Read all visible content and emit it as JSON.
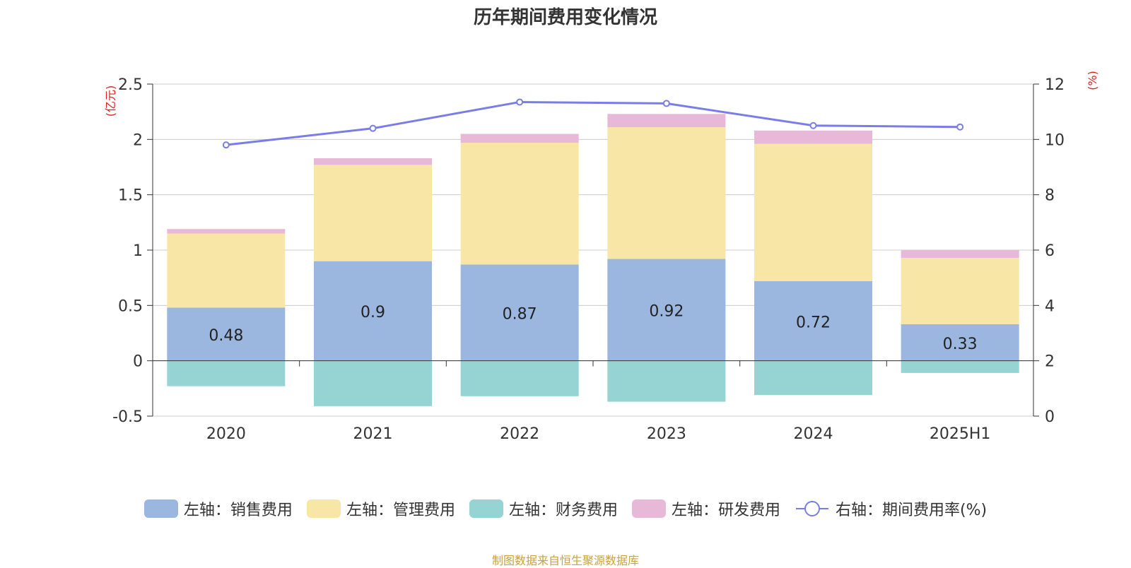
{
  "chart_data": {
    "type": "bar",
    "title": "历年期间费用变化情况",
    "categories": [
      "2020",
      "2021",
      "2022",
      "2023",
      "2024",
      "2025H1"
    ],
    "left_axis": {
      "unit_label": "(亿元)",
      "ylim": [
        -0.5,
        2.5
      ],
      "ticks": [
        "2.5",
        "2",
        "1.5",
        "1",
        "0.5",
        "0",
        "-0.5"
      ]
    },
    "right_axis": {
      "unit_label": "(%)",
      "ylim": [
        0,
        12
      ],
      "ticks": [
        "12",
        "10",
        "8",
        "6",
        "4",
        "2",
        "0"
      ]
    },
    "series": [
      {
        "name": "左轴：销售费用",
        "kind": "bar",
        "axis": "left",
        "color": "#9bb7e0",
        "values": [
          0.48,
          0.9,
          0.87,
          0.92,
          0.72,
          0.33
        ],
        "labels": [
          "0.48",
          "0.9",
          "0.87",
          "0.92",
          "0.72",
          "0.33"
        ]
      },
      {
        "name": "左轴：管理费用",
        "kind": "bar",
        "axis": "left",
        "color": "#f8e6a6",
        "values": [
          0.67,
          0.87,
          1.1,
          1.19,
          1.24,
          0.6
        ]
      },
      {
        "name": "左轴：财务费用",
        "kind": "bar",
        "axis": "left",
        "color": "#96d4d4",
        "values": [
          -0.23,
          -0.41,
          -0.32,
          -0.37,
          -0.31,
          -0.11
        ]
      },
      {
        "name": "左轴：研发费用",
        "kind": "bar",
        "axis": "left",
        "color": "#e8b8d8",
        "values": [
          0.04,
          0.06,
          0.08,
          0.12,
          0.12,
          0.07
        ]
      },
      {
        "name": "右轴：期间费用率(%)",
        "kind": "line",
        "axis": "right",
        "color": "#7a7de8",
        "values": [
          9.8,
          10.4,
          11.35,
          11.3,
          10.5,
          10.45
        ]
      }
    ],
    "grid": true,
    "legend_position": "bottom"
  },
  "source_note": "制图数据来自恒生聚源数据库"
}
